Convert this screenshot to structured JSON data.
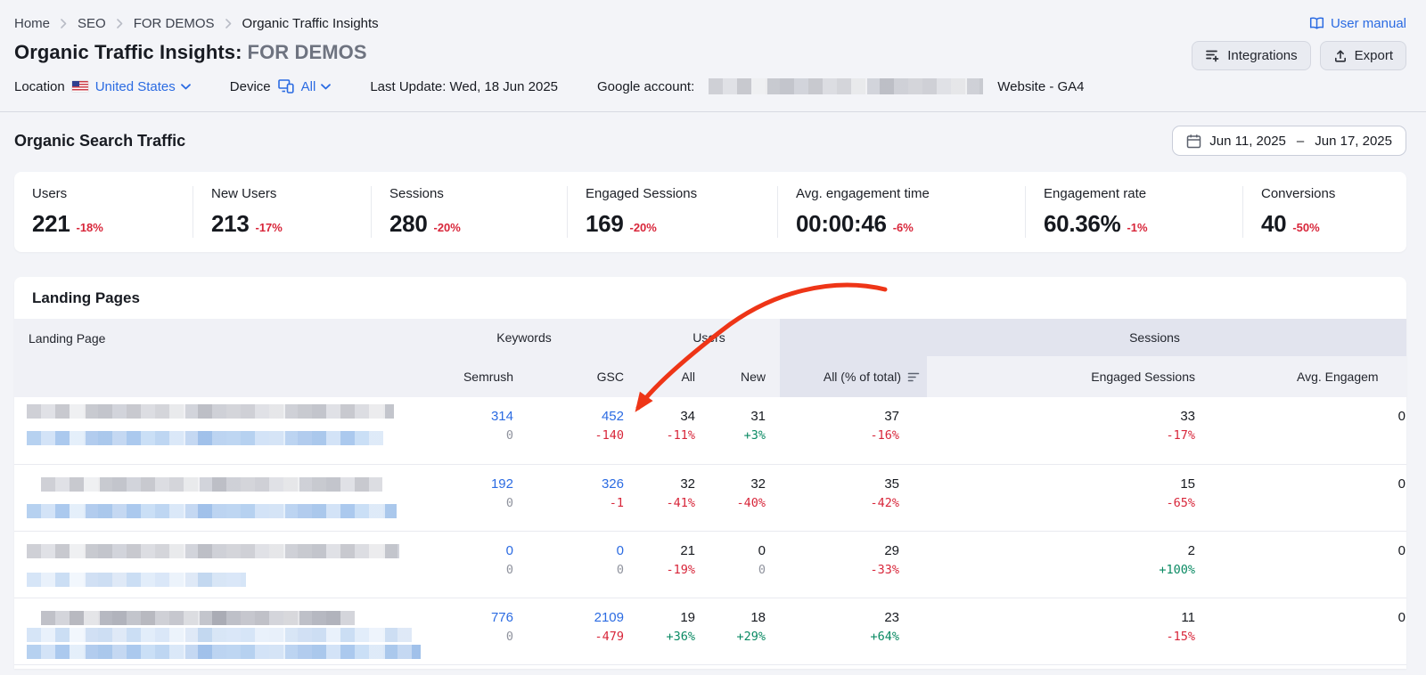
{
  "breadcrumb": {
    "items": [
      "Home",
      "SEO",
      "FOR DEMOS",
      "Organic Traffic Insights"
    ]
  },
  "header": {
    "title": "Organic Traffic Insights:",
    "project": "FOR DEMOS",
    "user_manual_label": "User manual",
    "integrations_label": "Integrations",
    "export_label": "Export"
  },
  "filters": {
    "location_label": "Location",
    "location_value": "United States",
    "device_label": "Device",
    "device_value": "All",
    "last_update": "Last Update: Wed, 18 Jun 2025",
    "google_account_label": "Google account:",
    "google_account_suffix": "Website - GA4"
  },
  "organic_search_traffic": {
    "title": "Organic Search Traffic",
    "date_range": {
      "start": "Jun 11, 2025",
      "separator": "–",
      "end": "Jun 17, 2025"
    },
    "metrics": [
      {
        "label": "Users",
        "value": "221",
        "delta": "-18%"
      },
      {
        "label": "New Users",
        "value": "213",
        "delta": "-17%"
      },
      {
        "label": "Sessions",
        "value": "280",
        "delta": "-20%"
      },
      {
        "label": "Engaged Sessions",
        "value": "169",
        "delta": "-20%"
      },
      {
        "label": "Avg. engagement time",
        "value": "00:00:46",
        "delta": "-6%"
      },
      {
        "label": "Engagement rate",
        "value": "60.36%",
        "delta": "-1%"
      },
      {
        "label": "Conversions",
        "value": "40",
        "delta": "-50%"
      }
    ]
  },
  "landing_pages": {
    "title": "Landing Pages",
    "columns": {
      "landing_page": "Landing Page",
      "keywords_group": "Keywords",
      "semrush": "Semrush",
      "gsc": "GSC",
      "users_group": "Users",
      "users_all": "All",
      "users_new": "New",
      "sessions_group": "Sessions",
      "sessions_all": "All (% of total)",
      "engaged_sessions": "Engaged Sessions",
      "avg_engagement": "Avg. Engagem"
    },
    "rows": [
      {
        "cells": [
          {
            "key": "semrush",
            "value": "314",
            "link": true,
            "delta": "0",
            "delta_style": "muted"
          },
          {
            "key": "gsc",
            "value": "452",
            "link": true,
            "delta": "-140",
            "delta_style": "down"
          },
          {
            "key": "users_all",
            "value": "34",
            "link": false,
            "delta": "-11%",
            "delta_style": "down"
          },
          {
            "key": "users_new",
            "value": "31",
            "link": false,
            "delta": "+3%",
            "delta_style": "up"
          },
          {
            "key": "sessions_all",
            "value": "37",
            "link": false,
            "delta": "-16%",
            "delta_style": "down"
          },
          {
            "key": "engaged_sessions",
            "value": "33",
            "link": false,
            "delta": "-17%",
            "delta_style": "down"
          },
          {
            "key": "avg_engagement",
            "value": "0",
            "link": false,
            "delta": null,
            "delta_style": null
          }
        ]
      },
      {
        "cells": [
          {
            "key": "semrush",
            "value": "192",
            "link": true,
            "delta": "0",
            "delta_style": "muted"
          },
          {
            "key": "gsc",
            "value": "326",
            "link": true,
            "delta": "-1",
            "delta_style": "down"
          },
          {
            "key": "users_all",
            "value": "32",
            "link": false,
            "delta": "-41%",
            "delta_style": "down"
          },
          {
            "key": "users_new",
            "value": "32",
            "link": false,
            "delta": "-40%",
            "delta_style": "down"
          },
          {
            "key": "sessions_all",
            "value": "35",
            "link": false,
            "delta": "-42%",
            "delta_style": "down"
          },
          {
            "key": "engaged_sessions",
            "value": "15",
            "link": false,
            "delta": "-65%",
            "delta_style": "down"
          },
          {
            "key": "avg_engagement",
            "value": "0",
            "link": false,
            "delta": null,
            "delta_style": null
          }
        ]
      },
      {
        "cells": [
          {
            "key": "semrush",
            "value": "0",
            "link": true,
            "delta": "0",
            "delta_style": "muted"
          },
          {
            "key": "gsc",
            "value": "0",
            "link": true,
            "delta": "0",
            "delta_style": "muted"
          },
          {
            "key": "users_all",
            "value": "21",
            "link": false,
            "delta": "-19%",
            "delta_style": "down"
          },
          {
            "key": "users_new",
            "value": "0",
            "link": false,
            "delta": "0",
            "delta_style": "muted"
          },
          {
            "key": "sessions_all",
            "value": "29",
            "link": false,
            "delta": "-33%",
            "delta_style": "down"
          },
          {
            "key": "engaged_sessions",
            "value": "2",
            "link": false,
            "delta": "+100%",
            "delta_style": "up"
          },
          {
            "key": "avg_engagement",
            "value": "0",
            "link": false,
            "delta": null,
            "delta_style": null
          }
        ]
      },
      {
        "cells": [
          {
            "key": "semrush",
            "value": "776",
            "link": true,
            "delta": "0",
            "delta_style": "muted"
          },
          {
            "key": "gsc",
            "value": "2109",
            "link": true,
            "delta": "-479",
            "delta_style": "down"
          },
          {
            "key": "users_all",
            "value": "19",
            "link": false,
            "delta": "+36%",
            "delta_style": "up"
          },
          {
            "key": "users_new",
            "value": "18",
            "link": false,
            "delta": "+29%",
            "delta_style": "up"
          },
          {
            "key": "sessions_all",
            "value": "23",
            "link": false,
            "delta": "+64%",
            "delta_style": "up"
          },
          {
            "key": "engaged_sessions",
            "value": "11",
            "link": false,
            "delta": "-15%",
            "delta_style": "down"
          },
          {
            "key": "avg_engagement",
            "value": "0",
            "link": false,
            "delta": null,
            "delta_style": null
          }
        ]
      }
    ]
  },
  "annotation": {
    "arrow_color": "#ee3517"
  }
}
